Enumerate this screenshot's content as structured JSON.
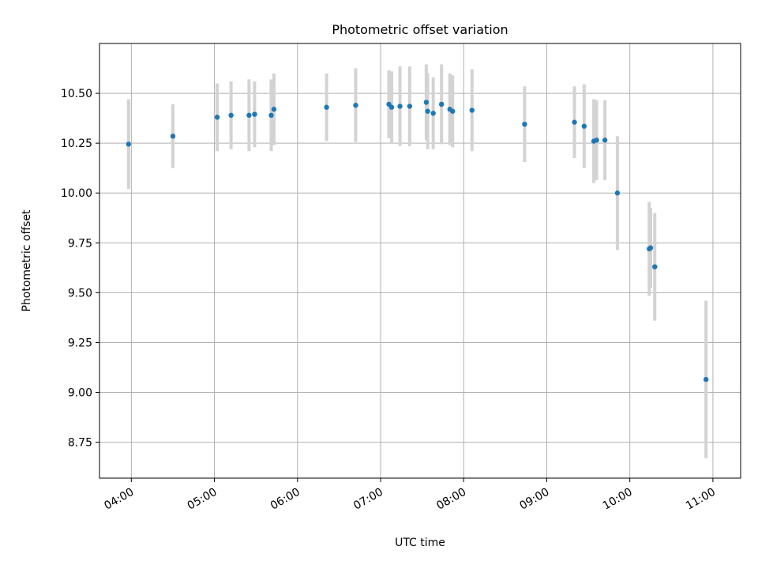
{
  "chart_data": {
    "type": "scatter",
    "title": "Photometric offset variation",
    "xlabel": "UTC time",
    "ylabel": "Photometric offset",
    "x_ticks": [
      "04:00",
      "05:00",
      "06:00",
      "07:00",
      "08:00",
      "09:00",
      "10:00",
      "11:00"
    ],
    "y_ticks": [
      "8.75",
      "9.00",
      "9.25",
      "9.50",
      "9.75",
      "10.00",
      "10.25",
      "10.50"
    ],
    "xlim": [
      "03:37",
      "11:20"
    ],
    "ylim": [
      8.57,
      10.75
    ],
    "grid": true,
    "marker_color": "#1f77b4",
    "errorbar_color": "#d3d3d3",
    "points": [
      {
        "t": "03:58",
        "y": 10.245,
        "err": 0.225
      },
      {
        "t": "04:30",
        "y": 10.285,
        "err": 0.16
      },
      {
        "t": "05:02",
        "y": 10.38,
        "err": 0.17
      },
      {
        "t": "05:12",
        "y": 10.39,
        "err": 0.17
      },
      {
        "t": "05:25",
        "y": 10.39,
        "err": 0.18
      },
      {
        "t": "05:29",
        "y": 10.395,
        "err": 0.165
      },
      {
        "t": "05:41",
        "y": 10.39,
        "err": 0.18
      },
      {
        "t": "05:43",
        "y": 10.42,
        "err": 0.18
      },
      {
        "t": "06:21",
        "y": 10.43,
        "err": 0.17
      },
      {
        "t": "06:42",
        "y": 10.44,
        "err": 0.185
      },
      {
        "t": "07:06",
        "y": 10.445,
        "err": 0.17
      },
      {
        "t": "07:08",
        "y": 10.43,
        "err": 0.18
      },
      {
        "t": "07:14",
        "y": 10.435,
        "err": 0.2
      },
      {
        "t": "07:21",
        "y": 10.435,
        "err": 0.2
      },
      {
        "t": "07:33",
        "y": 10.455,
        "err": 0.19
      },
      {
        "t": "07:34",
        "y": 10.41,
        "err": 0.19
      },
      {
        "t": "07:38",
        "y": 10.4,
        "err": 0.18
      },
      {
        "t": "07:44",
        "y": 10.445,
        "err": 0.2
      },
      {
        "t": "07:50",
        "y": 10.42,
        "err": 0.18
      },
      {
        "t": "07:52",
        "y": 10.41,
        "err": 0.18
      },
      {
        "t": "08:06",
        "y": 10.415,
        "err": 0.205
      },
      {
        "t": "08:44",
        "y": 10.345,
        "err": 0.19
      },
      {
        "t": "09:20",
        "y": 10.355,
        "err": 0.18
      },
      {
        "t": "09:27",
        "y": 10.335,
        "err": 0.21
      },
      {
        "t": "09:34",
        "y": 10.26,
        "err": 0.21
      },
      {
        "t": "09:36",
        "y": 10.265,
        "err": 0.2
      },
      {
        "t": "09:42",
        "y": 10.265,
        "err": 0.2
      },
      {
        "t": "09:51",
        "y": 10.0,
        "err": 0.285
      },
      {
        "t": "10:14",
        "y": 9.72,
        "err": 0.235
      },
      {
        "t": "10:15",
        "y": 9.725,
        "err": 0.2
      },
      {
        "t": "10:18",
        "y": 9.63,
        "err": 0.27
      },
      {
        "t": "10:55",
        "y": 9.065,
        "err": 0.395
      }
    ]
  }
}
